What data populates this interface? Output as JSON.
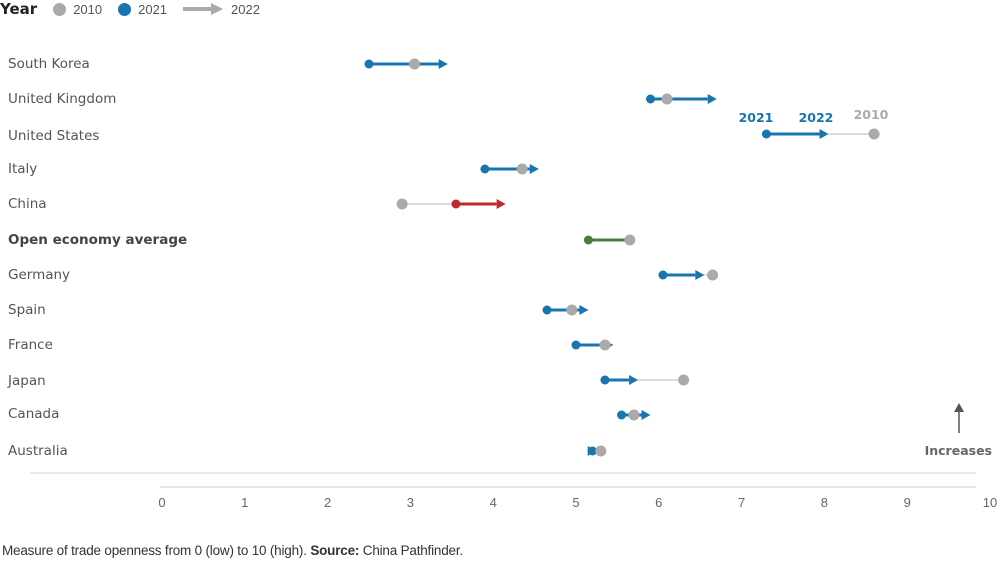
{
  "legend": {
    "title": "Year",
    "items": [
      {
        "label": "2010",
        "color": "#aaaaaa",
        "shape": "dot"
      },
      {
        "label": "2021",
        "color": "#1a74b0",
        "shape": "dot"
      },
      {
        "label": "2022",
        "color": "#aaaaaa",
        "shape": "arrow"
      }
    ]
  },
  "annotations": {
    "label_2021": "2021",
    "label_2022": "2022",
    "label_2010": "2010",
    "increases": "Increases"
  },
  "footnote": {
    "text": "Measure of trade openness from 0 (low) to 10 (high).",
    "source_label": "Source:",
    "source": "China Pathfinder."
  },
  "colors": {
    "blue": "#1a74b0",
    "gray": "#aaaaaa",
    "red": "#c0282d",
    "green": "#4e7a3a"
  },
  "chart_data": {
    "type": "scatter",
    "xlim": [
      0,
      10
    ],
    "xticks": [
      "0",
      "1",
      "2",
      "3",
      "4",
      "5",
      "6",
      "7",
      "8",
      "9",
      "10"
    ],
    "series_names": [
      "2010",
      "2021",
      "2022"
    ],
    "rows": [
      {
        "label": "South Korea",
        "v2010": 3.05,
        "v2021": 2.5,
        "v2022": 3.45,
        "color": "#1a74b0",
        "bold": false
      },
      {
        "label": "United Kingdom",
        "v2010": 6.1,
        "v2021": 5.9,
        "v2022": 6.7,
        "color": "#1a74b0",
        "bold": false
      },
      {
        "label": "United States",
        "v2010": 8.6,
        "v2021": 7.3,
        "v2022": 8.05,
        "color": "#1a74b0",
        "bold": false
      },
      {
        "label": "Italy",
        "v2010": 4.35,
        "v2021": 3.9,
        "v2022": 4.55,
        "color": "#1a74b0",
        "bold": false
      },
      {
        "label": "China",
        "v2010": 2.9,
        "v2021": 3.55,
        "v2022": 4.15,
        "color": "#c0282d",
        "bold": false
      },
      {
        "label": "Open economy average",
        "v2010": 5.65,
        "v2021": 5.15,
        "v2022": 5.6,
        "color": "#4e7a3a",
        "bold": true
      },
      {
        "label": "Germany",
        "v2010": 6.65,
        "v2021": 6.05,
        "v2022": 6.55,
        "color": "#1a74b0",
        "bold": false
      },
      {
        "label": "Spain",
        "v2010": 4.95,
        "v2021": 4.65,
        "v2022": 5.15,
        "color": "#1a74b0",
        "bold": false
      },
      {
        "label": "France",
        "v2010": 5.35,
        "v2021": 5.0,
        "v2022": 5.45,
        "color": "#1a74b0",
        "bold": false
      },
      {
        "label": "Japan",
        "v2010": 6.3,
        "v2021": 5.35,
        "v2022": 5.75,
        "color": "#1a74b0",
        "bold": false
      },
      {
        "label": "Canada",
        "v2010": 5.7,
        "v2021": 5.55,
        "v2022": 5.9,
        "color": "#1a74b0",
        "bold": false
      },
      {
        "label": "Australia",
        "v2010": 5.3,
        "v2021": 5.2,
        "v2022": 5.25,
        "color": "#1a74b0",
        "bold": false
      }
    ]
  }
}
